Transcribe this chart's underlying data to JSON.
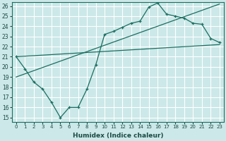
{
  "xlabel": "Humidex (Indice chaleur)",
  "bg_color": "#cce8e8",
  "grid_color": "#aad4d4",
  "line_color": "#1a6e60",
  "xlim": [
    -0.5,
    23.5
  ],
  "ylim": [
    14.6,
    26.4
  ],
  "yticks": [
    15,
    16,
    17,
    18,
    19,
    20,
    21,
    22,
    23,
    24,
    25,
    26
  ],
  "xticks": [
    0,
    1,
    2,
    3,
    4,
    5,
    6,
    7,
    8,
    9,
    10,
    11,
    12,
    13,
    14,
    15,
    16,
    17,
    18,
    19,
    20,
    21,
    22,
    23
  ],
  "line1_x": [
    0,
    1,
    2,
    3,
    4,
    5,
    6,
    7,
    8,
    9,
    10,
    11,
    12,
    13,
    14,
    15,
    16,
    17,
    18,
    19,
    20,
    21,
    22,
    23
  ],
  "line1_y": [
    21,
    19.8,
    18.5,
    17.8,
    16.5,
    15.0,
    16.0,
    16.0,
    17.8,
    20.2,
    23.2,
    23.5,
    23.9,
    24.3,
    24.5,
    25.9,
    26.3,
    25.2,
    25.0,
    24.8,
    24.3,
    24.2,
    22.8,
    22.4
  ],
  "line2_x": [
    0,
    23
  ],
  "line2_y": [
    21.0,
    22.2
  ],
  "line3_x": [
    0,
    23
  ],
  "line3_y": [
    19.0,
    26.2
  ]
}
